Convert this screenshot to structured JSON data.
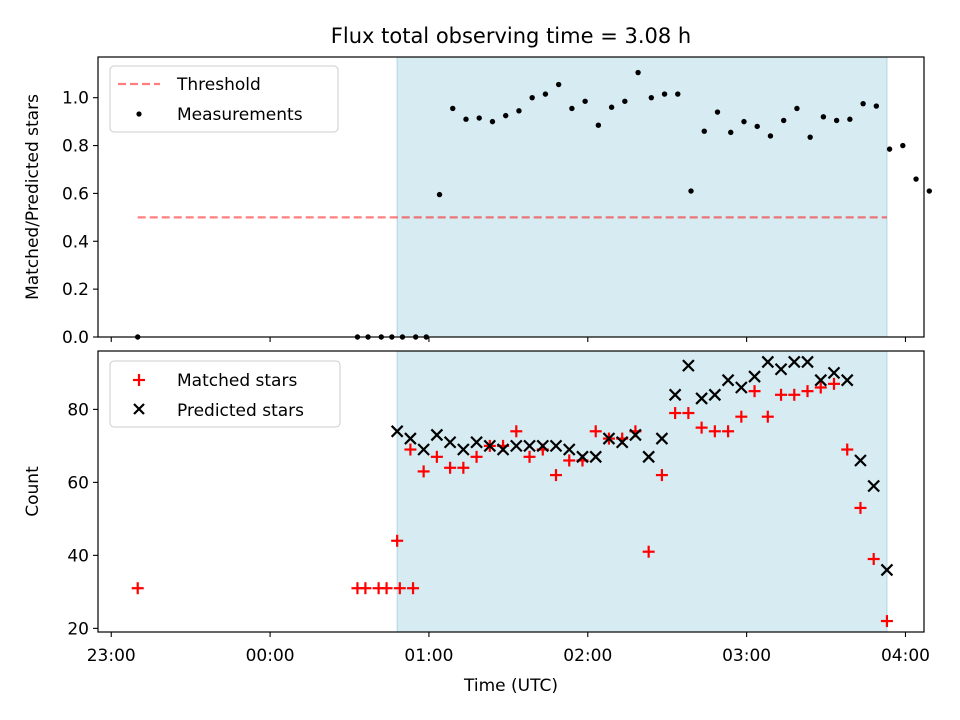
{
  "figure": {
    "title": "Flux total observing time = 3.08 h",
    "xlabel": "Time (UTC)",
    "xticks": [
      "23:00",
      "00:00",
      "01:00",
      "02:00",
      "03:00",
      "04:00"
    ]
  },
  "colors": {
    "shade": "#add8e6",
    "threshold": "#ff0000",
    "measurement": "#000000",
    "matched": "#ff0000",
    "predicted": "#000000"
  },
  "chart_data": [
    {
      "type": "scatter",
      "ylabel": "Matched/Predicted stars",
      "xlim": [
        "22:55",
        "04:07"
      ],
      "ylim": [
        0,
        1.17
      ],
      "yticks": [
        "0.0",
        "0.2",
        "0.4",
        "0.6",
        "0.8",
        "1.0"
      ],
      "shaded_interval": [
        "00:48",
        "03:53"
      ],
      "legend": {
        "placement": "upper-left",
        "entries": [
          {
            "label": "Threshold",
            "marker": "dashed-line"
          },
          {
            "label": "Measurements",
            "marker": "dot"
          }
        ]
      },
      "threshold": {
        "name": "Threshold",
        "y": 0.5,
        "x": [
          "23:10",
          "03:53"
        ]
      },
      "series": [
        {
          "name": "Measurements",
          "points": [
            [
              "23:10",
              0.0
            ],
            [
              "00:33",
              0.0
            ],
            [
              "00:37",
              0.0
            ],
            [
              "00:42",
              0.0
            ],
            [
              "00:46",
              0.0
            ],
            [
              "00:50",
              0.0
            ],
            [
              "00:55",
              0.0
            ],
            [
              "00:59",
              0.0
            ],
            [
              "01:04",
              0.595
            ],
            [
              "01:09",
              0.955
            ],
            [
              "01:14",
              0.91
            ],
            [
              "01:19",
              0.915
            ],
            [
              "01:24",
              0.9
            ],
            [
              "01:29",
              0.925
            ],
            [
              "01:34",
              0.945
            ],
            [
              "01:39",
              1.0
            ],
            [
              "01:44",
              1.015
            ],
            [
              "01:49",
              1.055
            ],
            [
              "01:54",
              0.955
            ],
            [
              "01:59",
              0.985
            ],
            [
              "02:04",
              0.885
            ],
            [
              "02:09",
              0.96
            ],
            [
              "02:14",
              0.985
            ],
            [
              "02:19",
              1.105
            ],
            [
              "02:24",
              1.0
            ],
            [
              "02:29",
              1.015
            ],
            [
              "02:34",
              1.015
            ],
            [
              "02:39",
              0.61
            ],
            [
              "02:44",
              0.86
            ],
            [
              "02:49",
              0.94
            ],
            [
              "02:54",
              0.855
            ],
            [
              "02:59",
              0.9
            ],
            [
              "03:04",
              0.88
            ],
            [
              "03:09",
              0.84
            ],
            [
              "03:14",
              0.905
            ],
            [
              "03:19",
              0.955
            ],
            [
              "03:24",
              0.835
            ],
            [
              "03:29",
              0.92
            ],
            [
              "03:34",
              0.905
            ],
            [
              "03:39",
              0.91
            ],
            [
              "03:44",
              0.975
            ],
            [
              "03:49",
              0.965
            ],
            [
              "03:54",
              0.785
            ],
            [
              "03:59",
              0.8
            ],
            [
              "04:04",
              0.66
            ],
            [
              "04:09",
              0.61
            ]
          ]
        }
      ]
    },
    {
      "type": "scatter",
      "ylabel": "Count",
      "xlim": [
        "22:55",
        "04:07"
      ],
      "ylim": [
        19,
        96
      ],
      "yticks": [
        "20",
        "40",
        "60",
        "80"
      ],
      "shaded_interval": [
        "00:48",
        "03:53"
      ],
      "legend": {
        "placement": "upper-left",
        "entries": [
          {
            "label": "Matched stars",
            "marker": "plus"
          },
          {
            "label": "Predicted stars",
            "marker": "x"
          }
        ]
      },
      "series": [
        {
          "name": "Matched stars",
          "points": [
            [
              "23:10",
              31
            ],
            [
              "00:33",
              31
            ],
            [
              "00:36",
              31
            ],
            [
              "00:41",
              31
            ],
            [
              "00:44",
              31
            ],
            [
              "00:49",
              31
            ],
            [
              "00:54",
              31
            ],
            [
              "00:48",
              44
            ],
            [
              "00:53",
              69
            ],
            [
              "00:58",
              63
            ],
            [
              "01:03",
              67
            ],
            [
              "01:08",
              64
            ],
            [
              "01:13",
              64
            ],
            [
              "01:18",
              67
            ],
            [
              "01:23",
              70
            ],
            [
              "01:28",
              70
            ],
            [
              "01:33",
              74
            ],
            [
              "01:38",
              67
            ],
            [
              "01:43",
              69
            ],
            [
              "01:48",
              62
            ],
            [
              "01:53",
              66
            ],
            [
              "01:58",
              66
            ],
            [
              "02:03",
              74
            ],
            [
              "02:08",
              72
            ],
            [
              "02:13",
              72
            ],
            [
              "02:18",
              74
            ],
            [
              "02:23",
              41
            ],
            [
              "02:28",
              62
            ],
            [
              "02:33",
              79
            ],
            [
              "02:38",
              79
            ],
            [
              "02:43",
              75
            ],
            [
              "02:48",
              74
            ],
            [
              "02:53",
              74
            ],
            [
              "02:58",
              78
            ],
            [
              "03:03",
              85
            ],
            [
              "03:08",
              78
            ],
            [
              "03:13",
              84
            ],
            [
              "03:18",
              84
            ],
            [
              "03:23",
              85
            ],
            [
              "03:28",
              86
            ],
            [
              "03:33",
              87
            ],
            [
              "03:38",
              69
            ],
            [
              "03:43",
              53
            ],
            [
              "03:48",
              39
            ],
            [
              "03:53",
              22
            ]
          ]
        },
        {
          "name": "Predicted stars",
          "points": [
            [
              "00:48",
              74
            ],
            [
              "00:53",
              72
            ],
            [
              "00:58",
              69
            ],
            [
              "01:03",
              73
            ],
            [
              "01:08",
              71
            ],
            [
              "01:13",
              69
            ],
            [
              "01:18",
              71
            ],
            [
              "01:23",
              70
            ],
            [
              "01:28",
              69
            ],
            [
              "01:33",
              70
            ],
            [
              "01:38",
              70
            ],
            [
              "01:43",
              70
            ],
            [
              "01:48",
              70
            ],
            [
              "01:53",
              69
            ],
            [
              "01:58",
              67
            ],
            [
              "02:03",
              67
            ],
            [
              "02:08",
              72
            ],
            [
              "02:13",
              71
            ],
            [
              "02:18",
              73
            ],
            [
              "02:23",
              67
            ],
            [
              "02:28",
              72
            ],
            [
              "02:33",
              84
            ],
            [
              "02:38",
              92
            ],
            [
              "02:43",
              83
            ],
            [
              "02:48",
              84
            ],
            [
              "02:53",
              88
            ],
            [
              "02:58",
              86
            ],
            [
              "03:03",
              89
            ],
            [
              "03:08",
              93
            ],
            [
              "03:13",
              91
            ],
            [
              "03:18",
              93
            ],
            [
              "03:23",
              93
            ],
            [
              "03:28",
              88
            ],
            [
              "03:33",
              90
            ],
            [
              "03:38",
              88
            ],
            [
              "03:43",
              66
            ],
            [
              "03:48",
              59
            ],
            [
              "03:53",
              36
            ]
          ]
        }
      ]
    }
  ]
}
